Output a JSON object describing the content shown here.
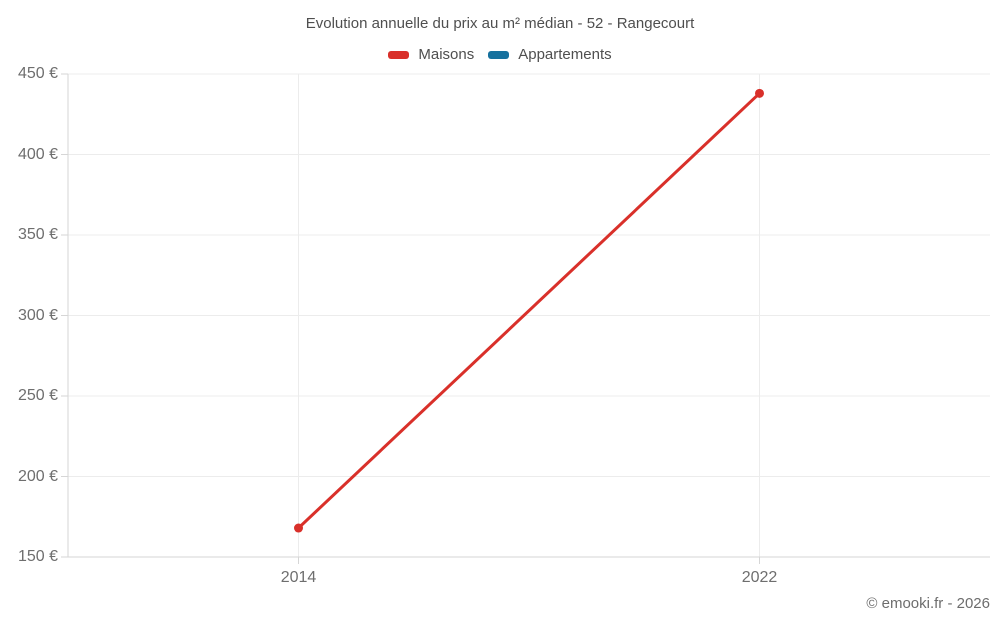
{
  "title": "Evolution annuelle du prix au m² médian - 52 - Rangecourt",
  "legend": [
    {
      "label": "Maisons",
      "color": "#d9302a"
    },
    {
      "label": "Appartements",
      "color": "#16719e"
    }
  ],
  "footer": {
    "copyright": "© emooki.fr - 2026"
  },
  "chart_data": {
    "type": "line",
    "categories": [
      "2014",
      "2022"
    ],
    "series": [
      {
        "name": "Maisons",
        "color": "#d9302a",
        "values": [
          168,
          438
        ]
      },
      {
        "name": "Appartements",
        "color": "#16719e",
        "values": [
          null,
          null
        ]
      }
    ],
    "title": "Evolution annuelle du prix au m² médian - 52 - Rangecourt",
    "xlabel": "",
    "ylabel": "",
    "ylim": [
      150,
      450
    ],
    "yticks": [
      150,
      200,
      250,
      300,
      350,
      400,
      450
    ],
    "ytick_suffix": " €",
    "grid": true,
    "legend_position": "top",
    "colors": {
      "gridline": "#ececec",
      "axis": "#d6d6d6",
      "tick_label": "#6e6e6e"
    }
  }
}
